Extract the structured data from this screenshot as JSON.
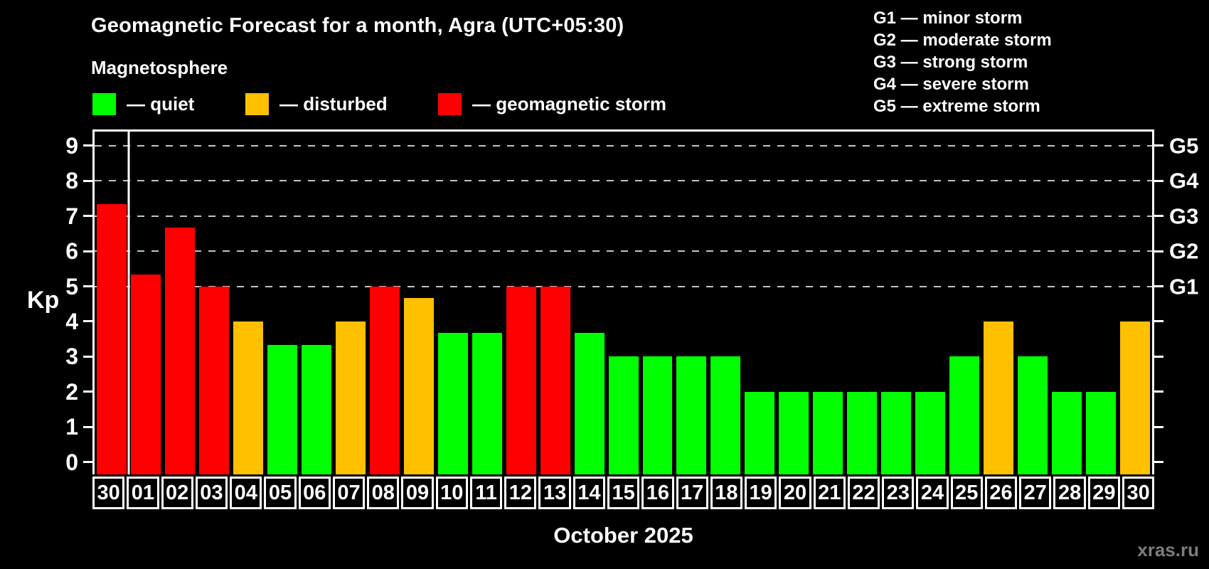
{
  "page": {
    "title": "Geomagnetic Forecast for a month, Agra (UTC+05:30)",
    "subtitle": "Magnetosphere",
    "y_axis_label": "Kp",
    "x_axis_label": "October 2025",
    "watermark": "xras.ru"
  },
  "colors": {
    "quiet": "#00ff00",
    "disturbed": "#ffc000",
    "storm": "#ff0000",
    "axis": "#ffffff",
    "grid": "#c3c3c3",
    "background": "#000000",
    "watermark": "#7d7d7d"
  },
  "legend": {
    "items": [
      {
        "status": "quiet",
        "label": "— quiet",
        "x": 130
      },
      {
        "status": "disturbed",
        "label": "— disturbed",
        "x": 345
      },
      {
        "status": "storm",
        "label": "— geomagnetic storm",
        "x": 616
      }
    ]
  },
  "g_scale_legend": {
    "lines": [
      "G1 — minor storm",
      "G2 — moderate storm",
      "G3 — strong storm",
      "G4 — severe storm",
      "G5 — extreme storm"
    ]
  },
  "chart_data": {
    "type": "bar",
    "title": "Geomagnetic Forecast for a month, Agra (UTC+05:30)",
    "xlabel": "October 2025",
    "ylabel": "Kp",
    "ylim": [
      0,
      9.4
    ],
    "grid": "horizontal dashed lines at Kp 5-9 only, drawn behind bars",
    "gridlines_at": [
      5,
      6,
      7,
      8,
      9
    ],
    "y_ticks": [
      0,
      1,
      2,
      3,
      4,
      5,
      6,
      7,
      8,
      9
    ],
    "right_axis_labels": [
      {
        "kp": 5,
        "label": "G1"
      },
      {
        "kp": 6,
        "label": "G2"
      },
      {
        "kp": 7,
        "label": "G3"
      },
      {
        "kp": 8,
        "label": "G4"
      },
      {
        "kp": 9,
        "label": "G5"
      }
    ],
    "separator_after_index": 0,
    "bars": [
      {
        "day": "30",
        "value": 7.33,
        "status": "storm"
      },
      {
        "day": "01",
        "value": 5.33,
        "status": "storm"
      },
      {
        "day": "02",
        "value": 6.67,
        "status": "storm"
      },
      {
        "day": "03",
        "value": 5.0,
        "status": "storm"
      },
      {
        "day": "04",
        "value": 4.0,
        "status": "disturbed"
      },
      {
        "day": "05",
        "value": 3.33,
        "status": "quiet"
      },
      {
        "day": "06",
        "value": 3.33,
        "status": "quiet"
      },
      {
        "day": "07",
        "value": 4.0,
        "status": "disturbed"
      },
      {
        "day": "08",
        "value": 5.0,
        "status": "storm"
      },
      {
        "day": "09",
        "value": 4.67,
        "status": "disturbed"
      },
      {
        "day": "10",
        "value": 3.67,
        "status": "quiet"
      },
      {
        "day": "11",
        "value": 3.67,
        "status": "quiet"
      },
      {
        "day": "12",
        "value": 5.0,
        "status": "storm"
      },
      {
        "day": "13",
        "value": 5.0,
        "status": "storm"
      },
      {
        "day": "14",
        "value": 3.67,
        "status": "quiet"
      },
      {
        "day": "15",
        "value": 3.0,
        "status": "quiet"
      },
      {
        "day": "16",
        "value": 3.0,
        "status": "quiet"
      },
      {
        "day": "17",
        "value": 3.0,
        "status": "quiet"
      },
      {
        "day": "18",
        "value": 3.0,
        "status": "quiet"
      },
      {
        "day": "19",
        "value": 2.0,
        "status": "quiet"
      },
      {
        "day": "20",
        "value": 2.0,
        "status": "quiet"
      },
      {
        "day": "21",
        "value": 2.0,
        "status": "quiet"
      },
      {
        "day": "22",
        "value": 2.0,
        "status": "quiet"
      },
      {
        "day": "23",
        "value": 2.0,
        "status": "quiet"
      },
      {
        "day": "24",
        "value": 2.0,
        "status": "quiet"
      },
      {
        "day": "25",
        "value": 3.0,
        "status": "quiet"
      },
      {
        "day": "26",
        "value": 4.0,
        "status": "disturbed"
      },
      {
        "day": "27",
        "value": 3.0,
        "status": "quiet"
      },
      {
        "day": "28",
        "value": 2.0,
        "status": "quiet"
      },
      {
        "day": "29",
        "value": 2.0,
        "status": "quiet"
      },
      {
        "day": "30",
        "value": 4.0,
        "status": "disturbed"
      }
    ]
  }
}
